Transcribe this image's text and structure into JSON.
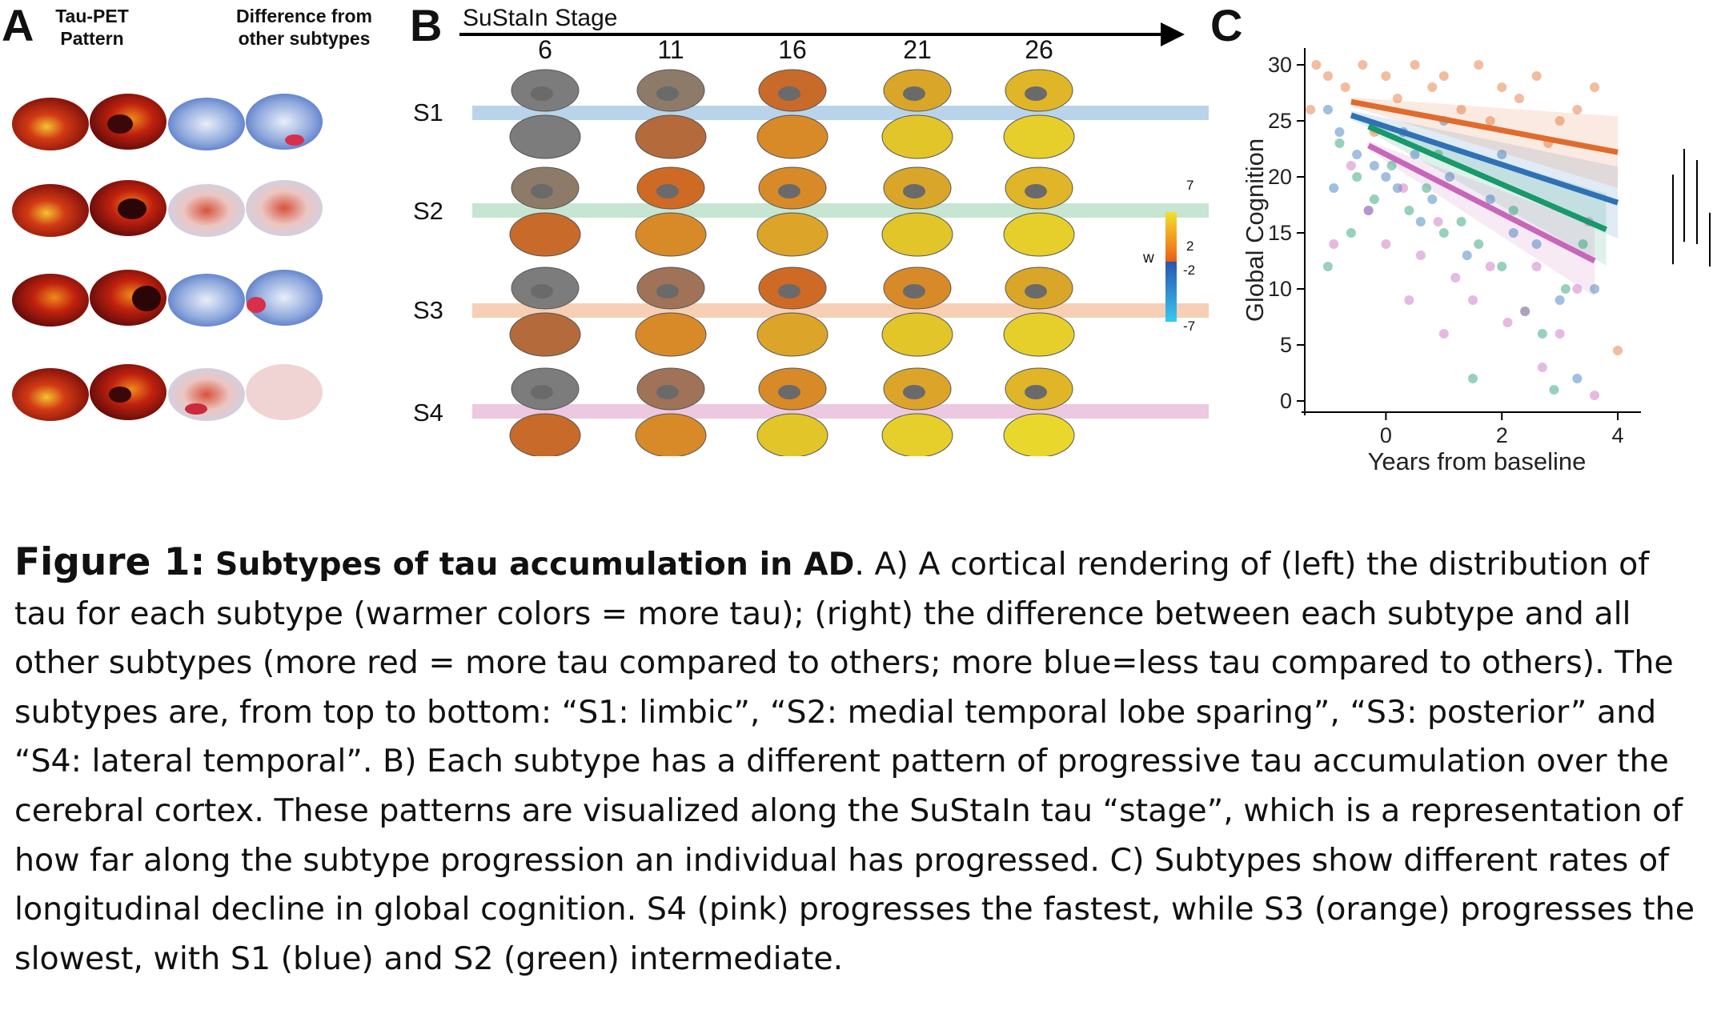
{
  "panel_a": {
    "letter": "A",
    "col1_line1": "Tau-PET",
    "col1_line2": "Pattern",
    "col2_line1": "Difference from",
    "col2_line2": "other subtypes"
  },
  "panel_b": {
    "letter": "B",
    "axis_label": "SuStaIn Stage",
    "stages": [
      "6",
      "11",
      "16",
      "21",
      "26"
    ],
    "subtypes": [
      "S1",
      "S2",
      "S3",
      "S4"
    ],
    "arrow_colors": [
      "#b9d4ea",
      "#c6e5d2",
      "#f6cfb4",
      "#ecc8e1"
    ],
    "arrowhead_colors": [
      "#8ec0de",
      "#9bd49a",
      "#eaa883",
      "#e3b2d8"
    ],
    "colorbar": {
      "label": "w",
      "ticks": [
        "7",
        "2",
        "-2",
        "-7"
      ]
    }
  },
  "panel_c": {
    "letter": "C",
    "chart_data": {
      "type": "scatter",
      "title": "",
      "xlabel": "Years from baseline",
      "ylabel": "Global Cognition",
      "xlim": [
        -1.4,
        4.4
      ],
      "ylim": [
        -1,
        31.5
      ],
      "xticks": [
        "0",
        "2",
        "4"
      ],
      "yticks": [
        "0",
        "5",
        "10",
        "15",
        "20",
        "25",
        "30"
      ],
      "grid": false,
      "series": [
        {
          "color": "#2e72b5",
          "line": {
            "x": [
              -0.6,
              4.0
            ],
            "y": [
              25.5,
              17.7
            ]
          },
          "points": [
            [
              -1.0,
              26
            ],
            [
              -0.8,
              24
            ],
            [
              -0.5,
              22
            ],
            [
              -0.2,
              21
            ],
            [
              0.0,
              20
            ],
            [
              0.2,
              19
            ],
            [
              0.5,
              22
            ],
            [
              0.8,
              18
            ],
            [
              1.1,
              20
            ],
            [
              1.4,
              13
            ],
            [
              1.8,
              18
            ],
            [
              2.2,
              15
            ],
            [
              2.6,
              14
            ],
            [
              3.0,
              9
            ],
            [
              3.3,
              2
            ],
            [
              3.6,
              10
            ],
            [
              -0.3,
              17
            ],
            [
              0.3,
              24
            ],
            [
              1.0,
              25
            ],
            [
              2.0,
              22
            ],
            [
              -0.9,
              19
            ],
            [
              0.6,
              16
            ]
          ]
        },
        {
          "color": "#e06b2d",
          "line": {
            "x": [
              -0.6,
              4.0
            ],
            "y": [
              26.7,
              22.2
            ]
          },
          "points": [
            [
              -1.2,
              30
            ],
            [
              -1.0,
              29
            ],
            [
              -0.7,
              28
            ],
            [
              -0.4,
              30
            ],
            [
              0.0,
              29
            ],
            [
              0.2,
              27
            ],
            [
              0.5,
              30
            ],
            [
              0.8,
              28
            ],
            [
              1.0,
              29
            ],
            [
              1.3,
              26
            ],
            [
              1.6,
              30
            ],
            [
              2.0,
              28
            ],
            [
              2.3,
              27
            ],
            [
              2.6,
              29
            ],
            [
              3.0,
              25
            ],
            [
              3.3,
              26
            ],
            [
              3.6,
              28
            ],
            [
              4.0,
              4.5
            ],
            [
              -0.2,
              24
            ],
            [
              1.8,
              25
            ],
            [
              2.8,
              23
            ],
            [
              -1.3,
              26
            ]
          ]
        },
        {
          "color": "#18996b",
          "line": {
            "x": [
              -0.3,
              3.8
            ],
            "y": [
              24.5,
              15.3
            ]
          },
          "points": [
            [
              -0.8,
              23
            ],
            [
              -0.5,
              20
            ],
            [
              -0.2,
              18
            ],
            [
              0.1,
              21
            ],
            [
              0.4,
              17
            ],
            [
              0.7,
              19
            ],
            [
              1.0,
              15
            ],
            [
              1.3,
              16
            ],
            [
              1.6,
              14
            ],
            [
              2.0,
              12
            ],
            [
              2.4,
              8
            ],
            [
              2.7,
              6
            ],
            [
              3.1,
              10
            ],
            [
              3.4,
              14
            ],
            [
              -0.6,
              15
            ],
            [
              1.5,
              2
            ],
            [
              2.9,
              1
            ],
            [
              0.9,
              22
            ],
            [
              -1.0,
              12
            ],
            [
              2.2,
              17
            ]
          ]
        },
        {
          "color": "#c767ba",
          "line": {
            "x": [
              -0.3,
              3.6
            ],
            "y": [
              22.8,
              12.5
            ]
          },
          "points": [
            [
              -0.6,
              21
            ],
            [
              -0.3,
              17
            ],
            [
              0.0,
              14
            ],
            [
              0.3,
              19
            ],
            [
              0.6,
              13
            ],
            [
              0.9,
              16
            ],
            [
              1.2,
              11
            ],
            [
              1.5,
              9
            ],
            [
              1.8,
              12
            ],
            [
              2.1,
              7
            ],
            [
              2.4,
              8
            ],
            [
              2.7,
              3
            ],
            [
              3.0,
              6
            ],
            [
              3.3,
              10
            ],
            [
              -0.9,
              14
            ],
            [
              0.4,
              9
            ],
            [
              1.0,
              6
            ],
            [
              2.6,
              12
            ],
            [
              3.5,
              16
            ],
            [
              3.6,
              0.5
            ]
          ]
        }
      ],
      "sig_bars": 4
    }
  },
  "caption": {
    "fig_label": "Figure 1:",
    "title": "Subtypes of tau accumulation in AD",
    "body": ". A) A cortical rendering of (left) the distribution of tau for each subtype (warmer colors = more tau); (right) the difference between each subtype and all other subtypes (more red = more tau compared to others; more blue=less tau compared to others). The subtypes are, from top to bottom: “S1: limbic”, “S2: medial temporal lobe sparing”, “S3: posterior” and “S4: lateral temporal”. B) Each subtype has a different pattern of progressive tau accumulation over the cerebral cortex. These patterns are visualized along the SuStaIn tau “stage”, which is a representation of how far along the subtype progression an individual has progressed. C) Subtypes show different rates of longitudinal decline in global cognition. S4 (pink) progresses the fastest, while S3 (orange) progresses the slowest, with S1 (blue) and S2 (green) intermediate."
  }
}
